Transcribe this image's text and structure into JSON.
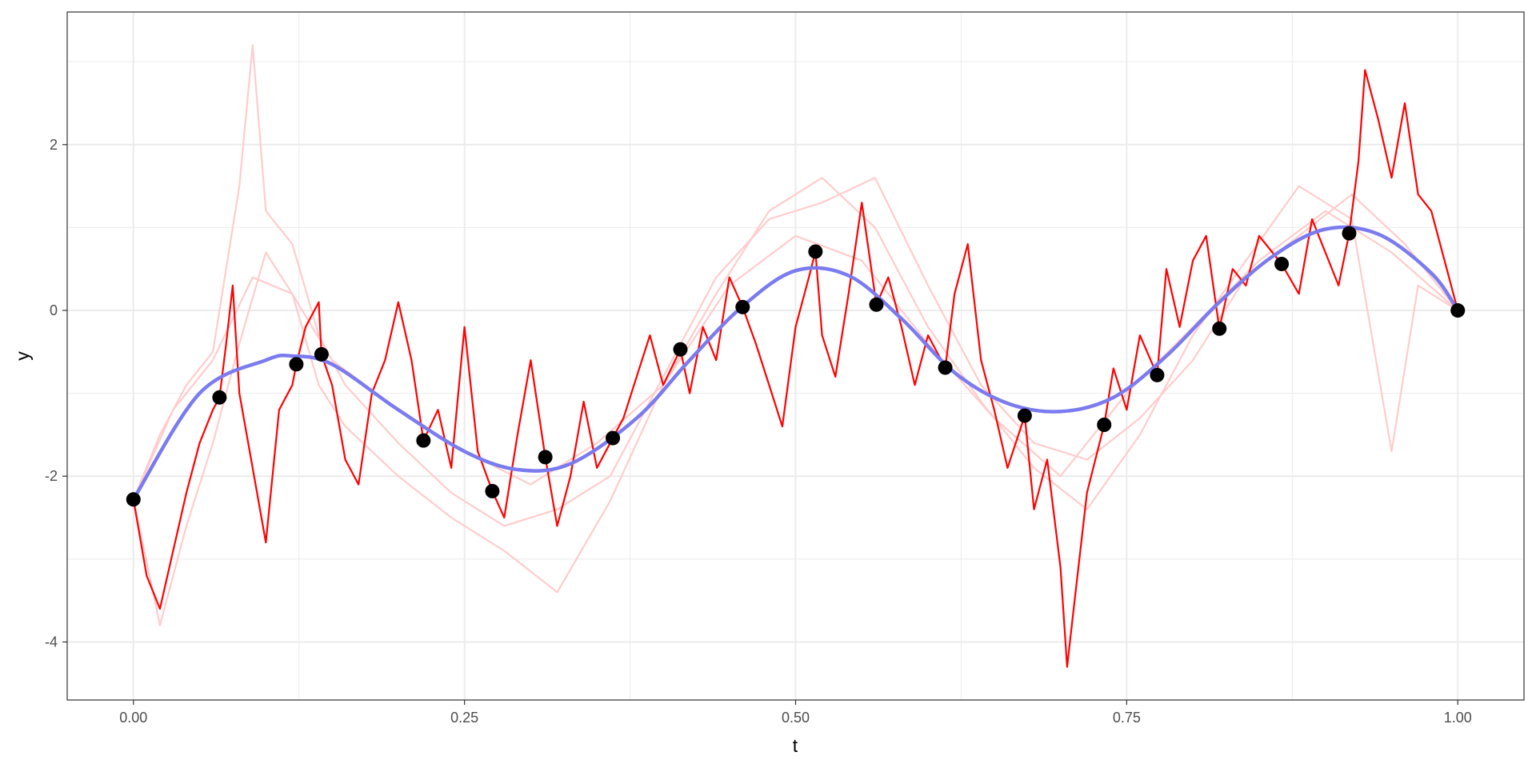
{
  "chart_data": {
    "type": "line",
    "title": "",
    "xlabel": "t",
    "ylabel": "y",
    "xlim": [
      -0.05,
      1.05
    ],
    "ylim": [
      -4.7,
      3.6
    ],
    "grid": true,
    "x_ticks": [
      {
        "value": 0,
        "label": "0.00"
      },
      {
        "value": 0.25,
        "label": "0.25"
      },
      {
        "value": 0.5,
        "label": "0.50"
      },
      {
        "value": 0.75,
        "label": "0.75"
      },
      {
        "value": 1.0,
        "label": "1.00"
      }
    ],
    "y_ticks": [
      {
        "value": -4,
        "label": "-4"
      },
      {
        "value": -2,
        "label": "-2"
      },
      {
        "value": 0,
        "label": "0"
      },
      {
        "value": 2,
        "label": "2"
      }
    ],
    "colors": {
      "mean_curve": "#7b7bf0",
      "highlight_path": "#ff0000",
      "background_paths": "#ffcccc",
      "observations": "#000000",
      "grid": "#ebebeb",
      "panel_border": "#333333"
    },
    "series": [
      {
        "kind": "mean-curve",
        "x": [
          0.0,
          0.05,
          0.1,
          0.12,
          0.15,
          0.2,
          0.25,
          0.29,
          0.33,
          0.38,
          0.42,
          0.46,
          0.5,
          0.54,
          0.58,
          0.62,
          0.66,
          0.7,
          0.74,
          0.78,
          0.82,
          0.86,
          0.9,
          0.94,
          0.98,
          1.0
        ],
        "y": [
          -2.28,
          -1.0,
          -0.6,
          -0.55,
          -0.65,
          -1.2,
          -1.7,
          -1.92,
          -1.85,
          -1.3,
          -0.6,
          0.05,
          0.48,
          0.42,
          -0.1,
          -0.75,
          -1.12,
          -1.22,
          -1.05,
          -0.55,
          0.1,
          0.65,
          0.98,
          0.92,
          0.45,
          0.0
        ]
      },
      {
        "kind": "observations",
        "x": [
          0.0,
          0.065,
          0.123,
          0.142,
          0.219,
          0.271,
          0.311,
          0.362,
          0.413,
          0.46,
          0.515,
          0.561,
          0.613,
          0.673,
          0.733,
          0.773,
          0.82,
          0.867,
          0.918,
          1.0
        ],
        "y": [
          -2.28,
          -1.05,
          -0.65,
          -0.53,
          -1.57,
          -2.18,
          -1.77,
          -1.54,
          -0.47,
          0.04,
          0.71,
          0.07,
          -0.69,
          -1.27,
          -1.38,
          -0.78,
          -0.22,
          0.56,
          0.93,
          0.0
        ]
      },
      {
        "kind": "highlight-path",
        "x": [
          0.0,
          0.01,
          0.02,
          0.03,
          0.04,
          0.05,
          0.06,
          0.065,
          0.07,
          0.075,
          0.08,
          0.09,
          0.1,
          0.11,
          0.12,
          0.123,
          0.13,
          0.14,
          0.142,
          0.15,
          0.16,
          0.17,
          0.18,
          0.19,
          0.2,
          0.21,
          0.219,
          0.23,
          0.24,
          0.25,
          0.26,
          0.271,
          0.28,
          0.29,
          0.3,
          0.311,
          0.32,
          0.33,
          0.34,
          0.35,
          0.362,
          0.37,
          0.38,
          0.39,
          0.4,
          0.413,
          0.42,
          0.43,
          0.44,
          0.45,
          0.46,
          0.47,
          0.48,
          0.49,
          0.5,
          0.51,
          0.515,
          0.52,
          0.53,
          0.54,
          0.55,
          0.561,
          0.57,
          0.58,
          0.59,
          0.6,
          0.613,
          0.62,
          0.63,
          0.64,
          0.65,
          0.66,
          0.673,
          0.68,
          0.69,
          0.7,
          0.705,
          0.71,
          0.72,
          0.733,
          0.74,
          0.75,
          0.76,
          0.773,
          0.78,
          0.79,
          0.8,
          0.81,
          0.82,
          0.83,
          0.84,
          0.85,
          0.867,
          0.88,
          0.89,
          0.9,
          0.91,
          0.918,
          0.925,
          0.93,
          0.94,
          0.95,
          0.96,
          0.97,
          0.98,
          0.99,
          1.0
        ],
        "y": [
          -2.28,
          -3.2,
          -3.6,
          -2.9,
          -2.2,
          -1.6,
          -1.2,
          -1.05,
          -0.4,
          0.3,
          -1.0,
          -1.9,
          -2.8,
          -1.2,
          -0.9,
          -0.65,
          -0.2,
          0.1,
          -0.53,
          -0.9,
          -1.8,
          -2.1,
          -1.0,
          -0.6,
          0.1,
          -0.6,
          -1.57,
          -1.2,
          -1.9,
          -0.2,
          -1.7,
          -2.18,
          -2.5,
          -1.5,
          -0.6,
          -1.77,
          -2.6,
          -2.0,
          -1.1,
          -1.9,
          -1.54,
          -1.3,
          -0.8,
          -0.3,
          -0.9,
          -0.47,
          -1.0,
          -0.2,
          -0.6,
          0.4,
          0.04,
          -0.4,
          -0.9,
          -1.4,
          -0.2,
          0.4,
          0.71,
          -0.3,
          -0.8,
          0.2,
          1.3,
          0.07,
          0.4,
          -0.2,
          -0.9,
          -0.3,
          -0.69,
          0.2,
          0.8,
          -0.6,
          -1.2,
          -1.9,
          -1.27,
          -2.4,
          -1.8,
          -3.1,
          -4.3,
          -3.6,
          -2.2,
          -1.38,
          -0.7,
          -1.2,
          -0.3,
          -0.78,
          0.5,
          -0.2,
          0.6,
          0.9,
          -0.22,
          0.5,
          0.3,
          0.9,
          0.56,
          0.2,
          1.1,
          0.7,
          0.3,
          0.93,
          1.8,
          2.9,
          2.3,
          1.6,
          2.5,
          1.4,
          1.2,
          0.6,
          0.0
        ]
      },
      {
        "kind": "background-path",
        "x": [
          0.0,
          0.02,
          0.04,
          0.06,
          0.08,
          0.09,
          0.1,
          0.12,
          0.14,
          0.16,
          0.2,
          0.24,
          0.28,
          0.32,
          0.36,
          0.4,
          0.44,
          0.48,
          0.52,
          0.56,
          0.6,
          0.64,
          0.68,
          0.72,
          0.76,
          0.8,
          0.84,
          0.88,
          0.92,
          0.96,
          1.0
        ],
        "y": [
          -2.28,
          -1.5,
          -0.9,
          -0.5,
          1.5,
          3.2,
          1.2,
          0.8,
          -0.3,
          -0.9,
          -1.6,
          -2.2,
          -2.6,
          -2.4,
          -2.0,
          -0.8,
          0.4,
          1.1,
          1.3,
          1.6,
          0.3,
          -0.9,
          -1.6,
          -1.8,
          -1.3,
          -0.6,
          0.4,
          0.9,
          1.4,
          0.8,
          0.0
        ]
      },
      {
        "kind": "background-path",
        "x": [
          0.0,
          0.02,
          0.04,
          0.06,
          0.08,
          0.1,
          0.12,
          0.14,
          0.16,
          0.2,
          0.24,
          0.28,
          0.32,
          0.36,
          0.4,
          0.44,
          0.48,
          0.52,
          0.56,
          0.6,
          0.64,
          0.68,
          0.72,
          0.76,
          0.8,
          0.84,
          0.88,
          0.92,
          0.95,
          0.97,
          1.0
        ],
        "y": [
          -2.28,
          -3.8,
          -2.6,
          -1.6,
          -0.4,
          0.7,
          0.2,
          -0.9,
          -1.4,
          -2.0,
          -2.5,
          -2.9,
          -3.4,
          -2.3,
          -0.9,
          0.2,
          1.2,
          1.6,
          1.0,
          -0.2,
          -1.1,
          -1.9,
          -2.4,
          -1.5,
          -0.3,
          0.6,
          1.5,
          1.1,
          -1.7,
          0.3,
          0.0
        ]
      },
      {
        "kind": "background-path",
        "x": [
          0.0,
          0.03,
          0.06,
          0.09,
          0.12,
          0.15,
          0.2,
          0.25,
          0.3,
          0.35,
          0.4,
          0.45,
          0.5,
          0.55,
          0.6,
          0.65,
          0.7,
          0.75,
          0.8,
          0.85,
          0.9,
          0.95,
          1.0
        ],
        "y": [
          -2.28,
          -1.2,
          -0.6,
          0.4,
          0.2,
          -0.6,
          -1.2,
          -1.7,
          -2.1,
          -1.6,
          -0.9,
          0.3,
          0.9,
          0.6,
          -0.4,
          -1.3,
          -2.0,
          -1.0,
          -0.2,
          0.6,
          1.2,
          0.7,
          0.0
        ]
      }
    ]
  }
}
